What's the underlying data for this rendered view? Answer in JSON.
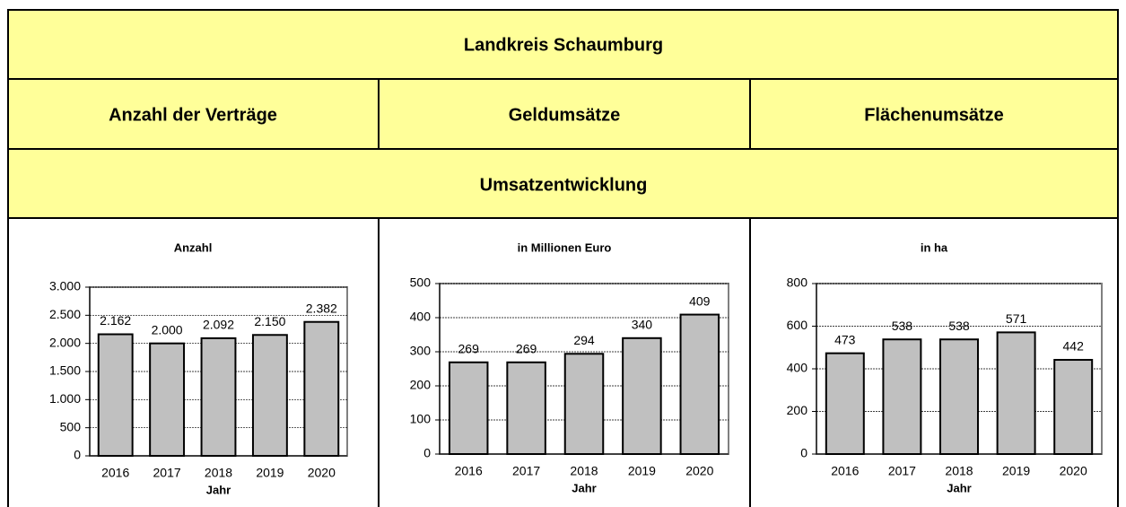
{
  "header": {
    "title": "Landkreis Schaumburg",
    "columns": [
      "Anzahl der Verträge",
      "Geldumsätze",
      "Flächenumsätze"
    ],
    "section": "Umsatzentwicklung"
  },
  "chart_data": [
    {
      "type": "bar",
      "title": "Anzahl",
      "x_label": "Jahr",
      "categories": [
        "2016",
        "2017",
        "2018",
        "2019",
        "2020"
      ],
      "values": [
        2162,
        2000,
        2092,
        2150,
        2382
      ],
      "value_labels": [
        "2.162",
        "2.000",
        "2.092",
        "2.150",
        "2.382"
      ],
      "color": "#c0c0c0",
      "ylim": [
        0,
        3000
      ],
      "yticks": [
        0,
        {
          "value": 500,
          "label": "500"
        },
        {
          "value": 1000,
          "label": "1.000"
        },
        {
          "value": 1500,
          "label": "1.500"
        },
        {
          "value": 2000,
          "label": "2.000"
        },
        {
          "value": 2500,
          "label": "2.500"
        },
        {
          "value": 3000,
          "label": "3.000"
        }
      ],
      "grid": true
    },
    {
      "type": "bar",
      "title": "in Millionen Euro",
      "x_label": "Jahr",
      "categories": [
        "2016",
        "2017",
        "2018",
        "2019",
        "2020"
      ],
      "values": [
        269,
        269,
        294,
        340,
        409
      ],
      "color": "#c0c0c0",
      "ylim": [
        0,
        500
      ],
      "yticks": [
        0,
        100,
        200,
        300,
        400,
        500
      ],
      "grid": true
    },
    {
      "type": "bar",
      "title": "in ha",
      "x_label": "Jahr",
      "categories": [
        "2016",
        "2017",
        "2018",
        "2019",
        "2020"
      ],
      "values": [
        473,
        538,
        538,
        571,
        442
      ],
      "color": "#c0c0c0",
      "ylim": [
        0,
        800
      ],
      "yticks": [
        0,
        200,
        400,
        600,
        800
      ],
      "grid": true
    }
  ]
}
